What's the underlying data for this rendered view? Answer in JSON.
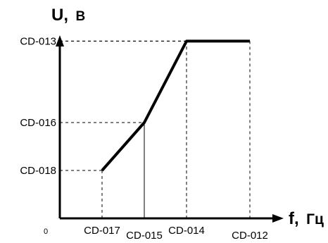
{
  "chart_data": {
    "type": "line",
    "title": "",
    "ylabel_main": "U,",
    "ylabel_unit": "В",
    "xlabel_main": "f,",
    "xlabel_unit": "Гц",
    "origin_label": "0",
    "x_ticks": [
      {
        "label": "CD-017",
        "value": 1
      },
      {
        "label": "CD-015",
        "value": 2
      },
      {
        "label": "CD-014",
        "value": 3
      },
      {
        "label": "CD-012",
        "value": 4.5
      }
    ],
    "y_ticks": [
      {
        "label": "CD-018",
        "value": 1
      },
      {
        "label": "CD-016",
        "value": 2
      },
      {
        "label": "CD-013",
        "value": 3.7
      }
    ],
    "series": [
      {
        "points": [
          {
            "x": 1,
            "y": 1
          },
          {
            "x": 2,
            "y": 2
          },
          {
            "x": 3,
            "y": 3.7
          },
          {
            "x": 4.5,
            "y": 3.7
          }
        ]
      }
    ],
    "xlim": [
      0,
      5.3
    ],
    "ylim": [
      0,
      4.3
    ],
    "grid": false
  }
}
